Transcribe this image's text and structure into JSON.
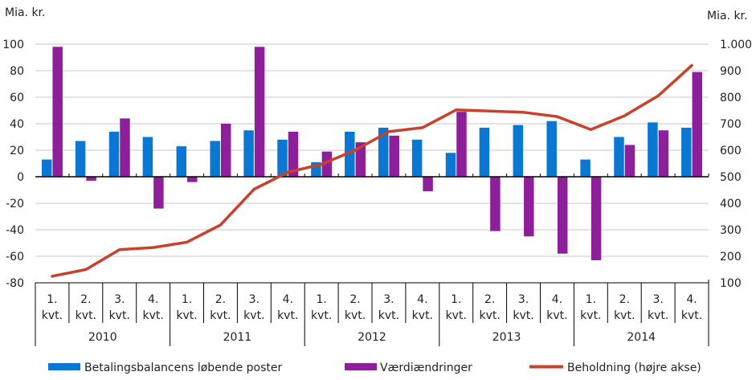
{
  "chart_data": {
    "type": "bar",
    "title": "",
    "ylabel_left": "Mia. kr.",
    "ylabel_right": "Mia. kr.",
    "ylim_left": [
      -80,
      100
    ],
    "yticks_left": [
      "-80",
      "-60",
      "-40",
      "-20",
      "0",
      "20",
      "40",
      "60",
      "80",
      "100"
    ],
    "ytick_values_left": [
      -80,
      -60,
      -40,
      -20,
      0,
      20,
      40,
      60,
      80,
      100
    ],
    "ylim_right": [
      100,
      1000
    ],
    "yticks_right": [
      "100",
      "200",
      "300",
      "400",
      "500",
      "600",
      "700",
      "800",
      "900",
      "1.000"
    ],
    "ytick_values_right": [
      100,
      200,
      300,
      400,
      500,
      600,
      700,
      800,
      900,
      1000
    ],
    "grid": true,
    "quarter_labels": [
      [
        "1.",
        "kvt."
      ],
      [
        "2.",
        "kvt."
      ],
      [
        "3.",
        "kvt."
      ],
      [
        "4.",
        "kvt."
      ],
      [
        "1.",
        "kvt."
      ],
      [
        "2.",
        "kvt."
      ],
      [
        "3.",
        "kvt."
      ],
      [
        "4.",
        "kvt."
      ],
      [
        "1.",
        "kvt."
      ],
      [
        "2.",
        "kvt."
      ],
      [
        "3.",
        "kvt."
      ],
      [
        "4.",
        "kvt."
      ],
      [
        "1.",
        "kvt."
      ],
      [
        "2.",
        "kvt."
      ],
      [
        "3.",
        "kvt."
      ],
      [
        "4.",
        "kvt."
      ],
      [
        "1.",
        "kvt."
      ],
      [
        "2.",
        "kvt."
      ],
      [
        "3.",
        "kvt."
      ],
      [
        "4.",
        "kvt."
      ]
    ],
    "years": [
      "2010",
      "2011",
      "2012",
      "2013",
      "2014"
    ],
    "series": [
      {
        "name": "Betalingsbalancens løbende poster",
        "type": "bar",
        "axis": "left",
        "color": "#0a78d2",
        "values": [
          13,
          27,
          34,
          30,
          23,
          27,
          35,
          28,
          11,
          34,
          37,
          28,
          18,
          37,
          39,
          42,
          13,
          30,
          41,
          37
        ]
      },
      {
        "name": "Værdiændringer",
        "type": "bar",
        "axis": "left",
        "color": "#8e1f9b",
        "values": [
          98,
          -3,
          44,
          -24,
          -4,
          40,
          98,
          34,
          19,
          26,
          31,
          -11,
          49,
          -41,
          -45,
          -58,
          -63,
          24,
          35,
          79
        ]
      },
      {
        "name": "Beholdning (højre akse)",
        "type": "line",
        "axis": "right",
        "color": "#c8412b",
        "values": [
          125,
          150,
          225,
          233,
          253,
          318,
          453,
          517,
          547,
          600,
          670,
          685,
          752,
          748,
          743,
          727,
          678,
          730,
          805,
          920
        ]
      }
    ],
    "legend_position": "bottom"
  }
}
